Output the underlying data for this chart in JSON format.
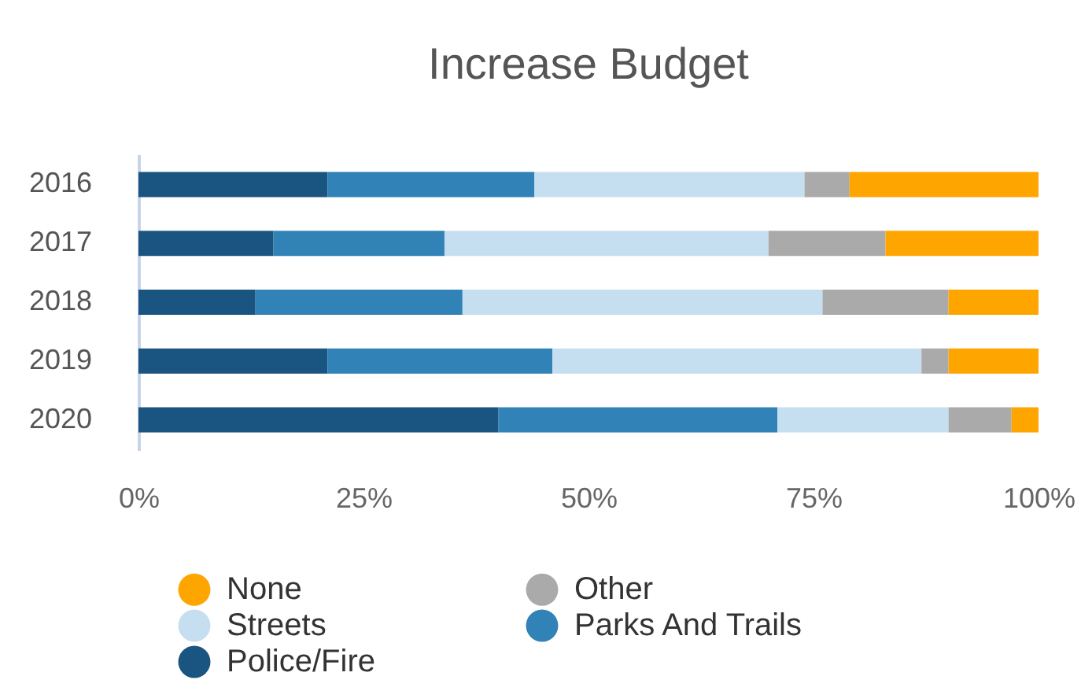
{
  "chart_data": {
    "type": "bar",
    "title": "Increase Budget",
    "orientation": "horizontal",
    "stacked": true,
    "categories": [
      "2016",
      "2017",
      "2018",
      "2019",
      "2020"
    ],
    "series": [
      {
        "name": "Police/Fire",
        "color": "#1a5582",
        "values": [
          21,
          15,
          13,
          21,
          40
        ]
      },
      {
        "name": "Parks And Trails",
        "color": "#3182b6",
        "values": [
          23,
          19,
          23,
          25,
          31
        ]
      },
      {
        "name": "Streets",
        "color": "#c6dff0",
        "values": [
          30,
          36,
          40,
          41,
          19
        ]
      },
      {
        "name": "Other",
        "color": "#aaaaaa",
        "values": [
          5,
          13,
          14,
          3,
          7
        ]
      },
      {
        "name": "None",
        "color": "#ffa500",
        "values": [
          21,
          17,
          10,
          10,
          3
        ]
      }
    ],
    "xlim": [
      0,
      100
    ],
    "xticks": [
      {
        "value": 0,
        "label": "0%"
      },
      {
        "value": 25,
        "label": "25%"
      },
      {
        "value": 50,
        "label": "50%"
      },
      {
        "value": 75,
        "label": "75%"
      },
      {
        "value": 100,
        "label": "100%"
      }
    ],
    "grid": false,
    "legend": "bottom"
  }
}
